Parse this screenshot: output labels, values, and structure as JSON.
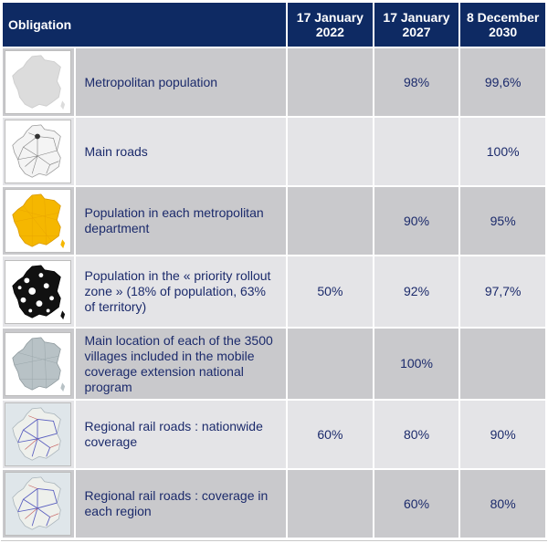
{
  "header": {
    "obligation": "Obligation",
    "col1": "17 January 2022",
    "col2": "17 January 2027",
    "col3": "8 December 2030"
  },
  "rows": [
    {
      "label": "Metropolitan population",
      "v1": "",
      "v2": "98%",
      "v3": "99,6%",
      "map": "france-grey-map-icon"
    },
    {
      "label": "Main roads",
      "v1": "",
      "v2": "",
      "v3": "100%",
      "map": "france-roads-map-icon"
    },
    {
      "label": "Population in each metropolitan department",
      "v1": "",
      "v2": "90%",
      "v3": "95%",
      "map": "france-departments-map-icon"
    },
    {
      "label": "Population in the « priority rollout zone » (18% of population, 63% of territory)",
      "v1": "50%",
      "v2": "92%",
      "v3": "97,7%",
      "map": "france-priority-zone-map-icon"
    },
    {
      "label": "Main location of each of the 3500 villages included in the mobile coverage extension national program",
      "v1": "",
      "v2": "100%",
      "v3": "",
      "map": "france-villages-map-icon"
    },
    {
      "label": "Regional rail roads : nationwide coverage",
      "v1": "60%",
      "v2": "80%",
      "v3": "90%",
      "map": "france-rail-map-icon"
    },
    {
      "label": "Regional rail roads : coverage in each region",
      "v1": "",
      "v2": "60%",
      "v3": "80%",
      "map": "france-rail-regional-map-icon"
    }
  ],
  "colors": {
    "header_bg": "#0e2a63",
    "row_dark": "#c9c9cc",
    "row_light": "#e4e4e7",
    "text": "#1b2a6b",
    "map_yellow": "#f5b700"
  }
}
